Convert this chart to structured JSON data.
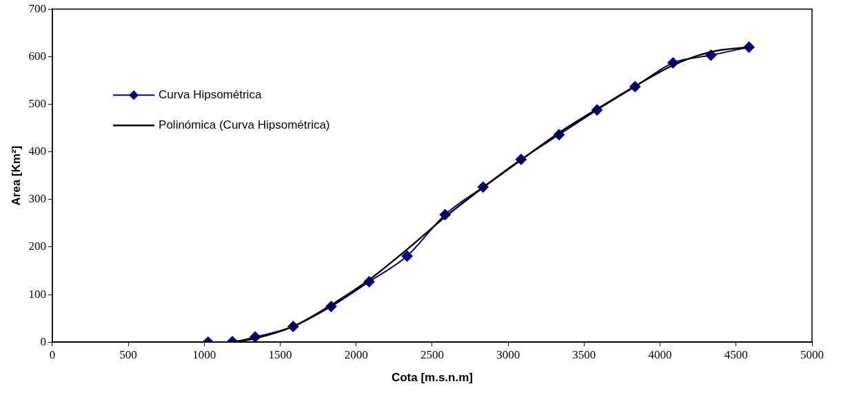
{
  "chart_data": {
    "type": "line",
    "xlabel": "Cota [m.s.n.m]",
    "ylabel": "Area [Km²]",
    "xlim": [
      0,
      5000
    ],
    "xticks": [
      0,
      500,
      1000,
      1500,
      2000,
      2500,
      3000,
      3500,
      4000,
      4500,
      5000
    ],
    "ylim": [
      0,
      700
    ],
    "yticks": [
      0,
      100,
      200,
      300,
      400,
      500,
      600,
      700
    ],
    "grid": false,
    "legend": "top left",
    "series": [
      {
        "name": "Curva Hipsométrica",
        "color": "#000080",
        "marker": "diamond",
        "x": [
          1025,
          1185,
          1335,
          1585,
          1835,
          2085,
          2335,
          2585,
          2835,
          3085,
          3335,
          3585,
          3835,
          4085,
          4335,
          4585
        ],
        "values": [
          0,
          1,
          11,
          33,
          75,
          127,
          181,
          268,
          326,
          384,
          436,
          488,
          537,
          587,
          603,
          620
        ]
      },
      {
        "name": "Polinómica (Curva Hipsométrica)",
        "color": "#000000",
        "marker": "none",
        "x": [
          1180,
          1335,
          1585,
          1835,
          2085,
          2335,
          2585,
          2835,
          3085,
          3335,
          3585,
          3835,
          4085,
          4335,
          4585
        ],
        "values": [
          0,
          8,
          33,
          78,
          131,
          195,
          263,
          325,
          383,
          440,
          490,
          538,
          582,
          610,
          620
        ]
      }
    ]
  }
}
